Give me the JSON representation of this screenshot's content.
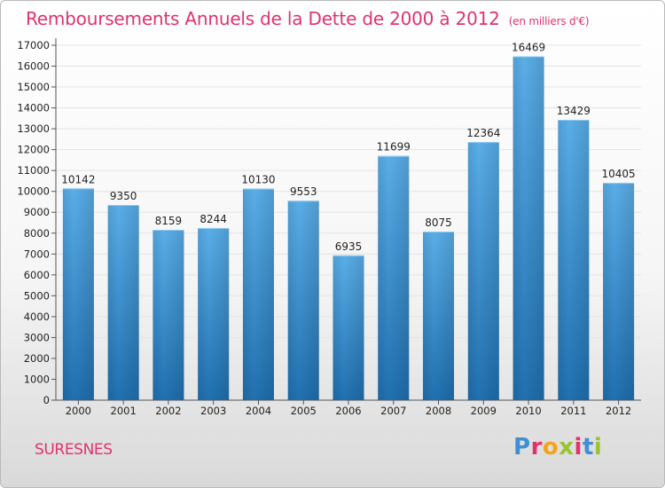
{
  "header": {
    "title": "Remboursements Annuels de la Dette de 2000 à 2012",
    "units": "(en milliers d'€)"
  },
  "footer": {
    "city": "SURESNES",
    "brand": "Proxiti",
    "brand_colors": [
      "#3d8fd6",
      "#e0336b",
      "#f2a51a",
      "#9ac231",
      "#e0336b",
      "#3d8fd6",
      "#9ac231"
    ]
  },
  "colors": {
    "bar_light": "#5aaee8",
    "bar_dark": "#2070b0",
    "label_text": "#222222",
    "grid": "#e4e4e4"
  },
  "chart_data": {
    "type": "bar",
    "categories": [
      "2000",
      "2001",
      "2002",
      "2003",
      "2004",
      "2005",
      "2006",
      "2007",
      "2008",
      "2009",
      "2010",
      "2011",
      "2012"
    ],
    "values": [
      10142,
      9350,
      8159,
      8244,
      10130,
      9553,
      6935,
      11699,
      8075,
      12364,
      16469,
      13429,
      10405
    ],
    "ylim": [
      0,
      17000
    ],
    "yticks": [
      0,
      1000,
      2000,
      3000,
      4000,
      5000,
      6000,
      7000,
      8000,
      9000,
      10000,
      11000,
      12000,
      13000,
      14000,
      15000,
      16000,
      17000
    ],
    "grid": true,
    "data_labels": true
  }
}
